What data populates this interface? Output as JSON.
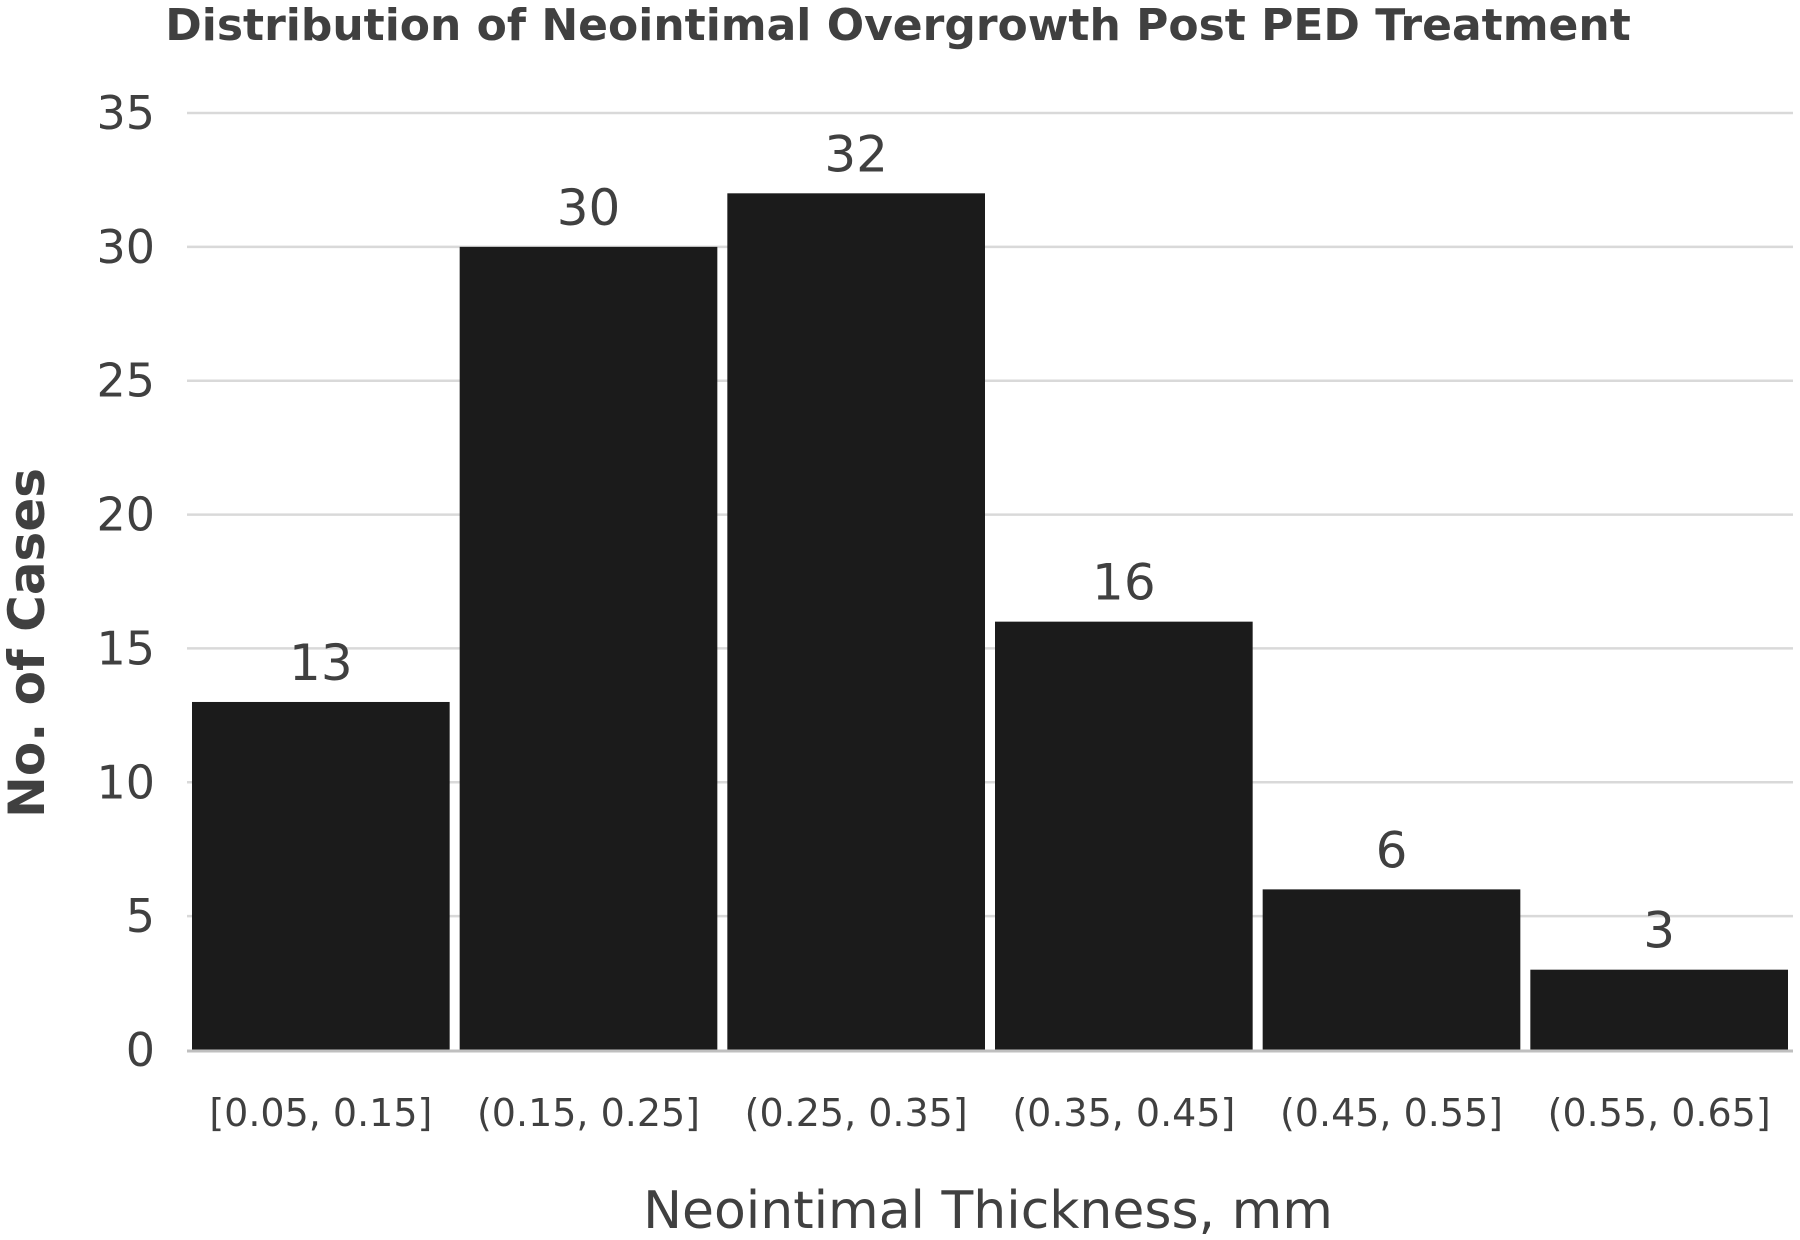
{
  "chart_data": {
    "type": "bar",
    "title": "Distribution of Neointimal Overgrowth Post PED Treatment",
    "xlabel": "Neointimal Thickness, mm",
    "ylabel": "No. of Cases",
    "categories": [
      "[0.05, 0.15]",
      "(0.15, 0.25]",
      "(0.25, 0.35]",
      "(0.35, 0.45]",
      "(0.45, 0.55]",
      "(0.55, 0.65]"
    ],
    "values": [
      13,
      30,
      32,
      16,
      6,
      3
    ],
    "data_labels": [
      "13",
      "30",
      "32",
      "16",
      "6",
      "3"
    ],
    "ylim": [
      0,
      35
    ],
    "yticks": [
      "0",
      "5",
      "10",
      "15",
      "20",
      "25",
      "30",
      "35"
    ],
    "grid": true,
    "legend": "none",
    "bar_color": "#1b1b1b",
    "text_color": "#404040",
    "grid_color": "#d9d9d9"
  }
}
